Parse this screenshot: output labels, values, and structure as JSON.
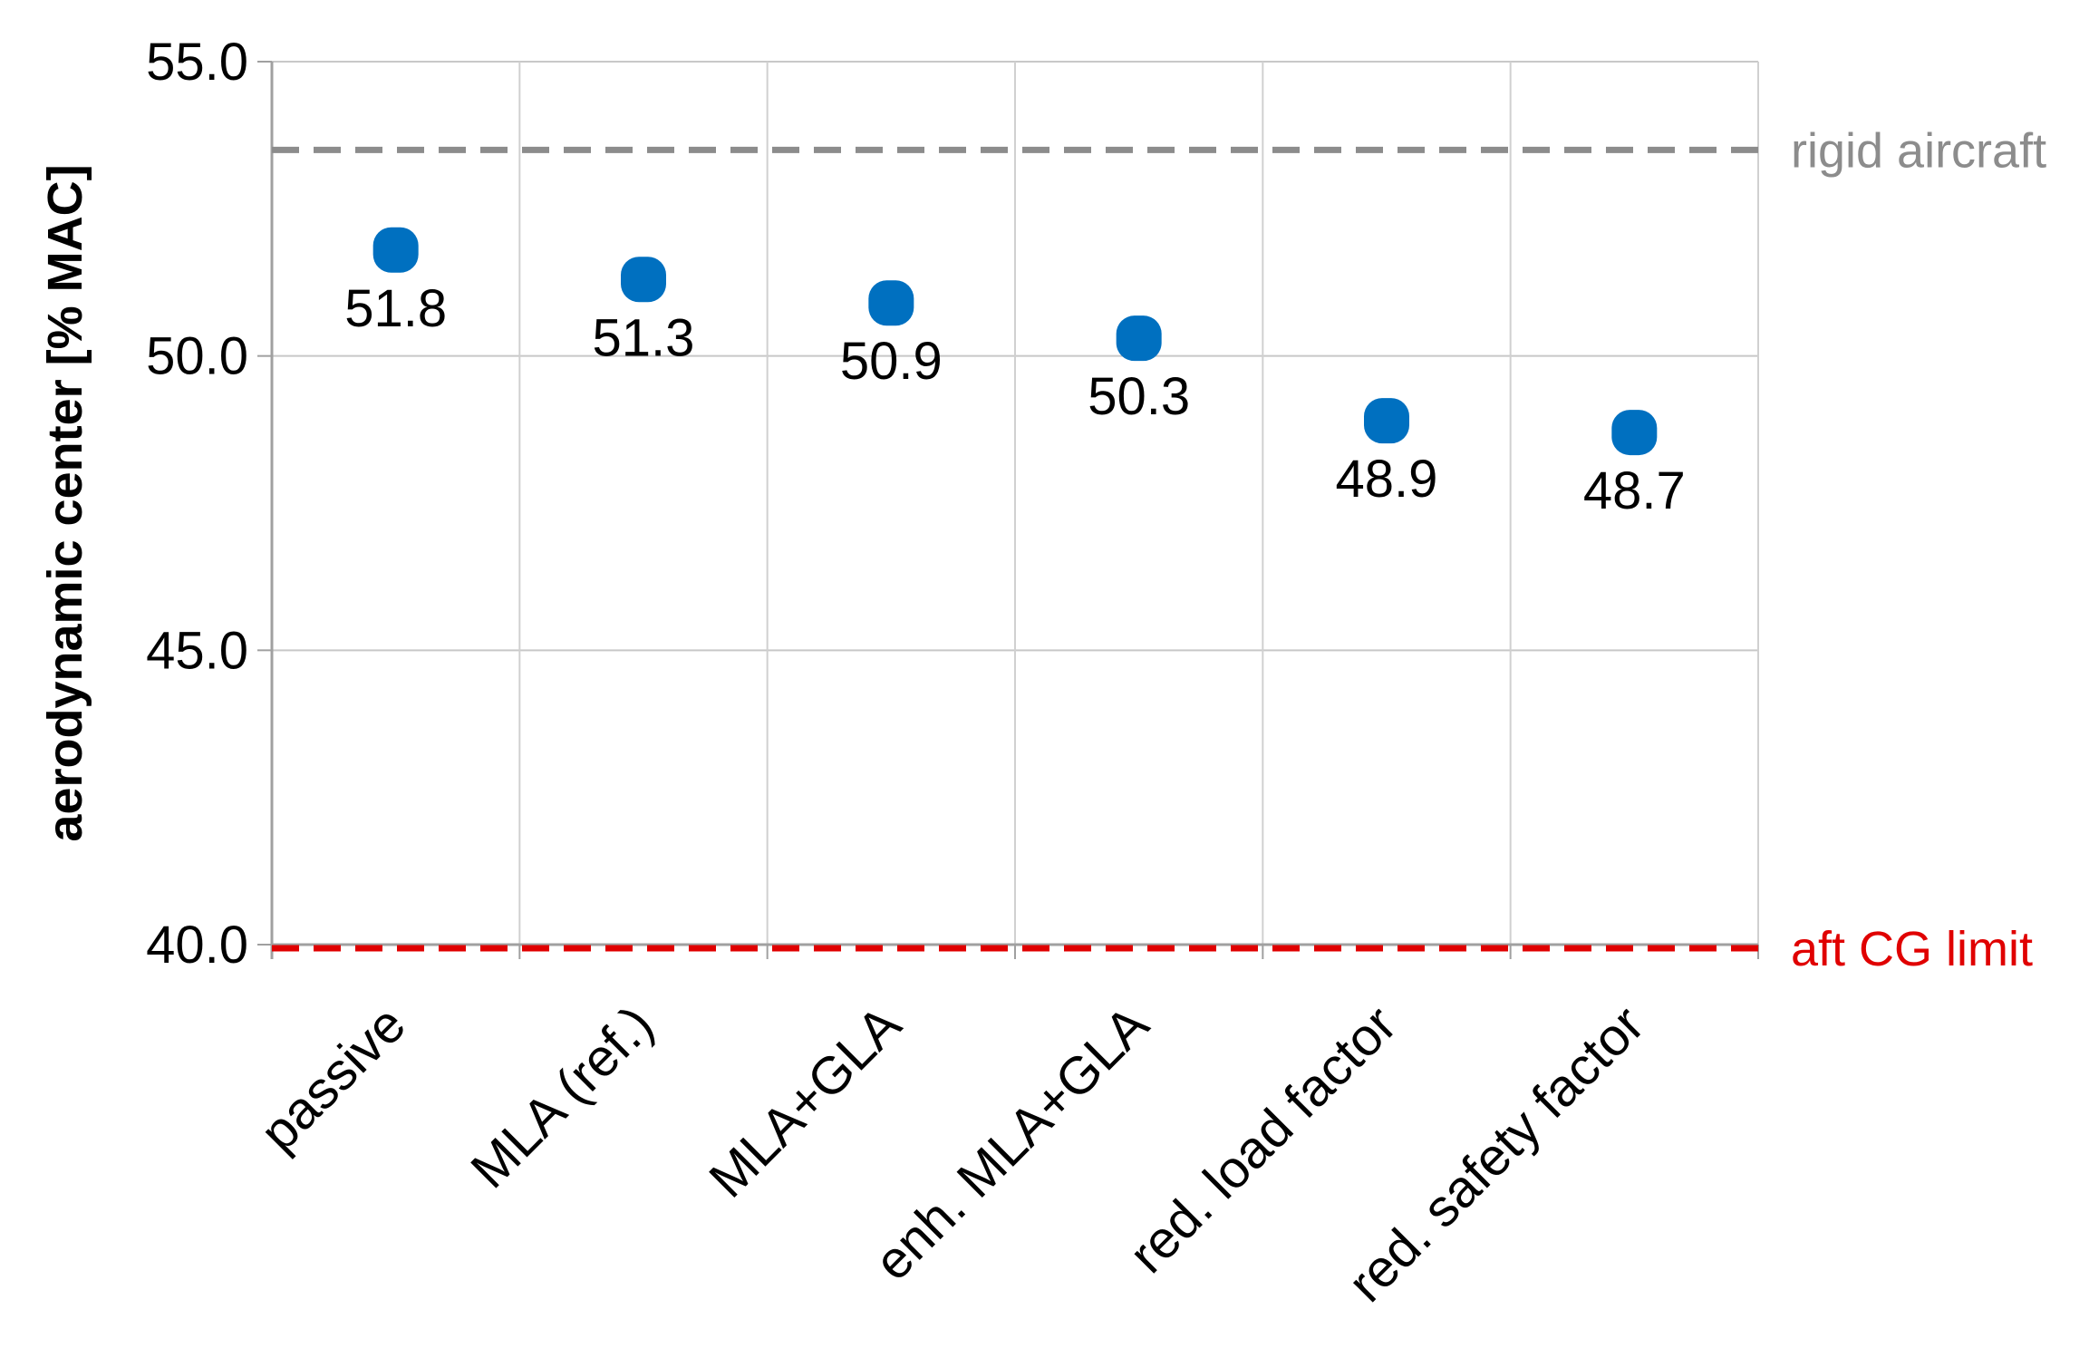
{
  "chart_data": {
    "type": "scatter",
    "title": "",
    "xlabel": "",
    "ylabel": "aerodynamic center [% MAC]",
    "categories": [
      "passive",
      "MLA (ref.)",
      "MLA+GLA",
      "enh. MLA+GLA",
      "red. load factor",
      "red. safety factor"
    ],
    "values": [
      51.8,
      51.3,
      50.9,
      50.3,
      48.9,
      48.7
    ],
    "data_labels": [
      "51.8",
      "51.3",
      "50.9",
      "50.3",
      "48.9",
      "48.7"
    ],
    "ylim": [
      40.0,
      55.0
    ],
    "yticks": [
      40.0,
      45.0,
      50.0,
      55.0
    ],
    "ytick_labels": [
      "40.0",
      "45.0",
      "50.0",
      "55.0"
    ],
    "grid": true,
    "legend": "none",
    "marker_color": "#0070c0",
    "reference_lines": [
      {
        "label": "rigid aircraft",
        "value": 53.5,
        "color": "#8c8c8c",
        "style": "dashed"
      },
      {
        "label": "aft CG limit",
        "value": 40.0,
        "color": "#e00000",
        "style": "dashed"
      }
    ]
  }
}
